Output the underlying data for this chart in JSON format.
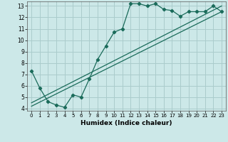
{
  "xlabel": "Humidex (Indice chaleur)",
  "bg_color": "#cce8e8",
  "grid_color": "#aacccc",
  "line_color": "#1a6b5a",
  "xlim": [
    -0.5,
    23.5
  ],
  "ylim": [
    3.8,
    13.4
  ],
  "xticks": [
    0,
    1,
    2,
    3,
    4,
    5,
    6,
    7,
    8,
    9,
    10,
    11,
    12,
    13,
    14,
    15,
    16,
    17,
    18,
    19,
    20,
    21,
    22,
    23
  ],
  "yticks": [
    4,
    5,
    6,
    7,
    8,
    9,
    10,
    11,
    12,
    13
  ],
  "line1_x": [
    0,
    1,
    2,
    3,
    4,
    5,
    6,
    7,
    8,
    9,
    10,
    11,
    12,
    13,
    14,
    15,
    16,
    17,
    18,
    19,
    20,
    21,
    22,
    23
  ],
  "line1_y": [
    7.3,
    5.8,
    4.6,
    4.3,
    4.1,
    5.2,
    5.0,
    6.6,
    8.3,
    9.5,
    10.7,
    11.0,
    13.2,
    13.2,
    13.0,
    13.2,
    12.7,
    12.6,
    12.1,
    12.5,
    12.5,
    12.5,
    13.0,
    12.5
  ],
  "line2_x": [
    0,
    23
  ],
  "line2_y": [
    4.5,
    13.0
  ],
  "line3_x": [
    0,
    23
  ],
  "line3_y": [
    4.2,
    12.5
  ]
}
